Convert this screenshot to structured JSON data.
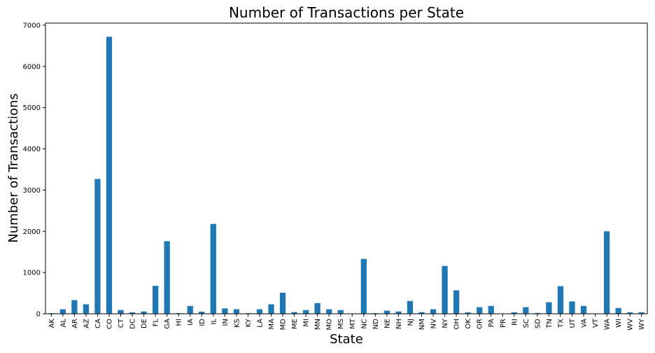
{
  "chart_data": {
    "type": "bar",
    "title": "Number of Transactions per State",
    "xlabel": "State",
    "ylabel": "Number of Transactions",
    "ylim": [
      0,
      7050
    ],
    "yticks": [
      0,
      1000,
      2000,
      3000,
      4000,
      5000,
      6000,
      7000
    ],
    "grid": false,
    "bar_color": "#1f77b4",
    "categories": [
      "AK",
      "AL",
      "AR",
      "AZ",
      "CA",
      "CO",
      "CT",
      "DC",
      "DE",
      "FL",
      "GA",
      "HI",
      "IA",
      "ID",
      "IL",
      "IN",
      "KS",
      "KY",
      "LA",
      "MA",
      "MD",
      "ME",
      "MI",
      "MN",
      "MO",
      "MS",
      "MT",
      "NC",
      "ND",
      "NE",
      "NH",
      "NJ",
      "NM",
      "NV",
      "NY",
      "OH",
      "OK",
      "OR",
      "PA",
      "PR",
      "RI",
      "SC",
      "SD",
      "TN",
      "TX",
      "UT",
      "VA",
      "VT",
      "WA",
      "WI",
      "WV",
      "WY"
    ],
    "values": [
      15,
      110,
      330,
      230,
      3270,
      6720,
      90,
      35,
      55,
      680,
      1760,
      15,
      190,
      50,
      2180,
      130,
      110,
      15,
      110,
      230,
      510,
      40,
      90,
      260,
      110,
      90,
      0,
      1330,
      15,
      75,
      55,
      310,
      40,
      110,
      1160,
      570,
      35,
      160,
      190,
      0,
      35,
      160,
      20,
      280,
      670,
      300,
      190,
      0,
      2000,
      140,
      35,
      35
    ]
  }
}
